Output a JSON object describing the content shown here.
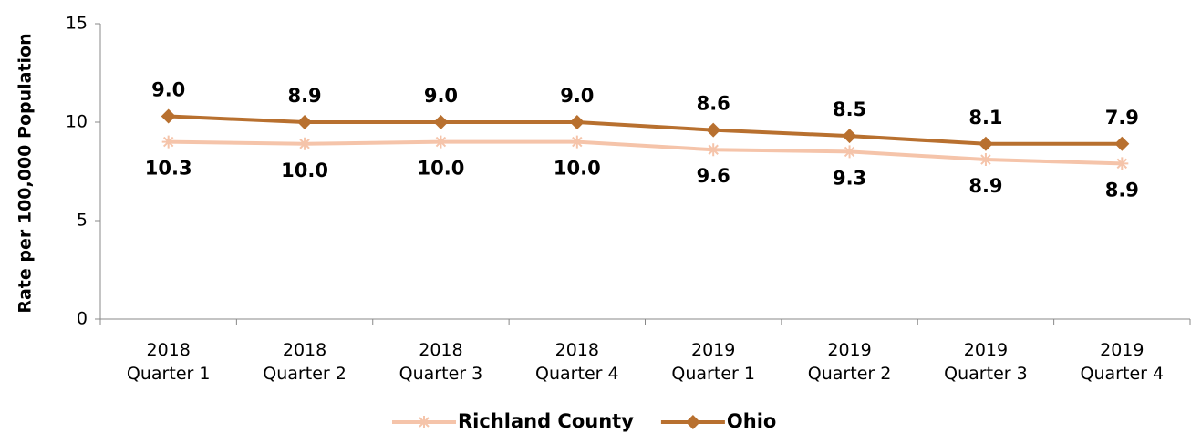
{
  "chart_data": {
    "type": "line",
    "y_label": "Rate per 100,000 Population",
    "categories": [
      [
        "2018",
        "Quarter 1"
      ],
      [
        "2018",
        "Quarter 2"
      ],
      [
        "2018",
        "Quarter 3"
      ],
      [
        "2018",
        "Quarter 4"
      ],
      [
        "2019",
        "Quarter 1"
      ],
      [
        "2019",
        "Quarter 2"
      ],
      [
        "2019",
        "Quarter 3"
      ],
      [
        "2019",
        "Quarter 4"
      ]
    ],
    "series": [
      {
        "name": "Richland County",
        "color": "#f5c4aa",
        "marker": "star",
        "values": [
          9.0,
          8.9,
          9.0,
          9.0,
          8.6,
          8.5,
          8.1,
          7.9
        ],
        "value_labels": [
          "9.0",
          "8.9",
          "9.0",
          "9.0",
          "8.6",
          "8.5",
          "8.1",
          "7.9"
        ]
      },
      {
        "name": "Ohio",
        "color": "#b8702f",
        "marker": "diamond",
        "values": [
          10.3,
          10.0,
          10.0,
          10.0,
          9.6,
          9.3,
          8.9,
          8.9
        ],
        "value_labels": [
          "10.3",
          "10.0",
          "10.0",
          "10.0",
          "9.6",
          "9.3",
          "8.9",
          "8.9"
        ]
      }
    ],
    "ylim": [
      0,
      15
    ],
    "yticks": [
      0,
      5,
      10,
      15
    ],
    "legend": "bottom"
  }
}
